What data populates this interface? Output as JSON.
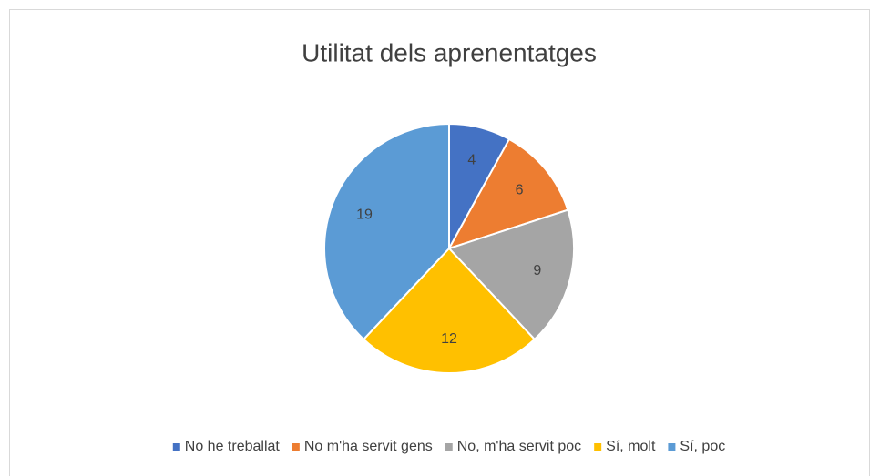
{
  "chart_data": {
    "type": "pie",
    "title": "Utilitat dels aprenentatges",
    "categories": [
      "No he treballat",
      "No m'ha servit gens",
      "No, m'ha servit poc",
      "Sí, molt",
      "Sí, poc"
    ],
    "values": [
      4,
      6,
      9,
      12,
      19
    ],
    "colors": [
      "#4472c4",
      "#ed7d31",
      "#a5a5a5",
      "#ffc000",
      "#5b9bd5"
    ],
    "legend": "bottom"
  }
}
